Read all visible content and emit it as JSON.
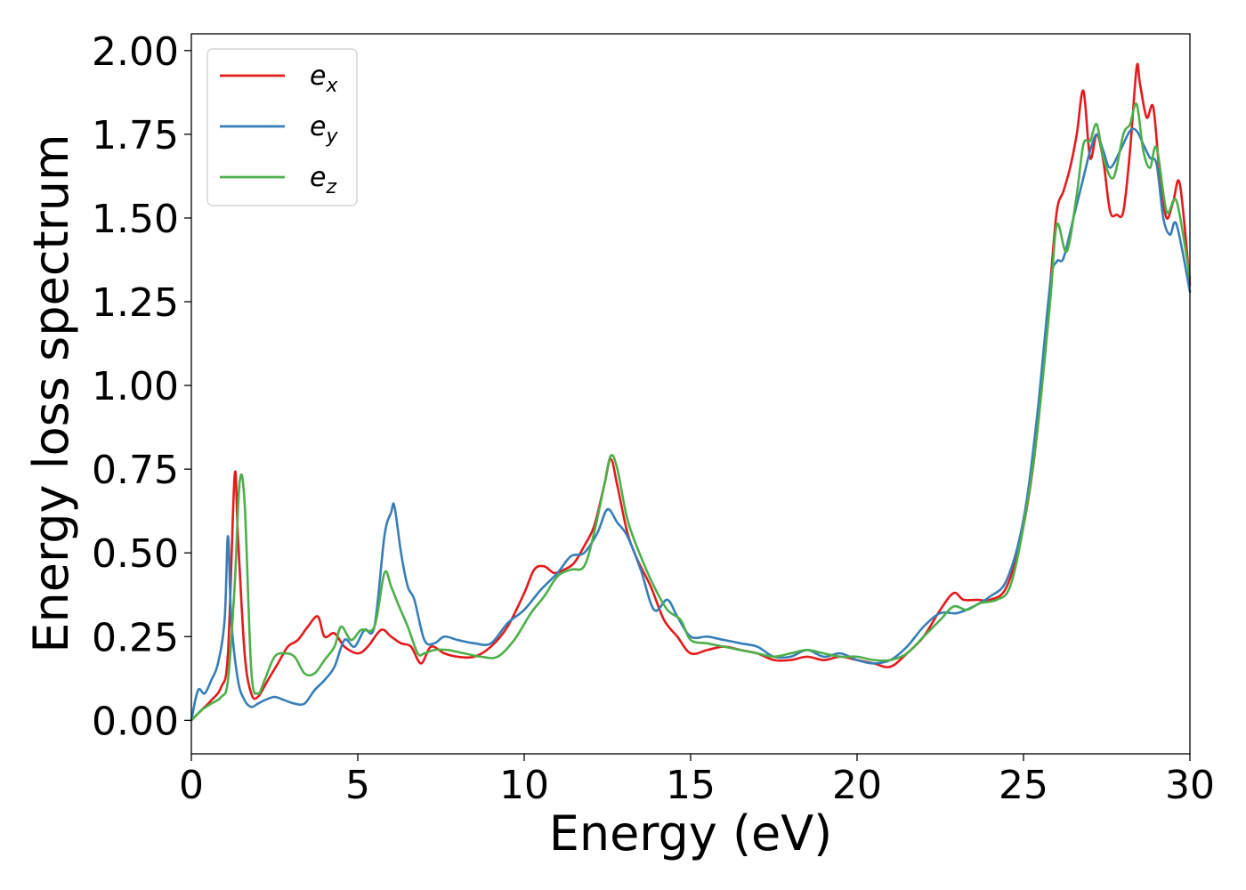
{
  "chart_data": {
    "type": "line",
    "xlabel": "Energy (eV)",
    "ylabel": "Energy loss spectrum",
    "xlim": [
      0,
      30
    ],
    "ylim": [
      -0.1,
      2.05
    ],
    "xticks": [
      0,
      5,
      10,
      15,
      20,
      25,
      30
    ],
    "xtick_labels": [
      "0",
      "5",
      "10",
      "15",
      "20",
      "25",
      "30"
    ],
    "yticks": [
      0.0,
      0.25,
      0.5,
      0.75,
      1.0,
      1.25,
      1.5,
      1.75,
      2.0
    ],
    "ytick_labels": [
      "0.00",
      "0.25",
      "0.50",
      "0.75",
      "1.00",
      "1.25",
      "1.50",
      "1.75",
      "2.00"
    ],
    "grid": false,
    "legend_position": "upper-left",
    "series": [
      {
        "name": "e_x",
        "legend_main": "e",
        "legend_sub": "x",
        "color": "#e41a1c",
        "x": [
          0,
          0.3,
          0.6,
          0.9,
          1.1,
          1.3,
          1.4,
          1.6,
          1.8,
          2.0,
          2.3,
          2.6,
          2.9,
          3.2,
          3.5,
          3.8,
          4.0,
          4.3,
          4.6,
          5.0,
          5.3,
          5.7,
          6.0,
          6.3,
          6.6,
          6.9,
          7.2,
          7.6,
          8.0,
          8.5,
          9.0,
          9.5,
          10.0,
          10.3,
          10.6,
          10.9,
          11.2,
          11.5,
          11.8,
          12.1,
          12.4,
          12.6,
          12.8,
          13.1,
          13.4,
          13.8,
          14.2,
          14.6,
          15.0,
          15.5,
          16.0,
          16.5,
          17.0,
          17.5,
          18.0,
          18.5,
          19.0,
          19.5,
          20.0,
          20.5,
          21.0,
          21.5,
          22.0,
          22.5,
          22.9,
          23.2,
          23.6,
          24.0,
          24.5,
          25.0,
          25.4,
          25.8,
          26.0,
          26.2,
          26.4,
          26.6,
          26.8,
          27.0,
          27.2,
          27.4,
          27.6,
          27.8,
          28.0,
          28.2,
          28.4,
          28.5,
          28.7,
          28.9,
          29.1,
          29.3,
          29.5,
          29.7,
          30.0
        ],
        "values": [
          0.0,
          0.03,
          0.06,
          0.1,
          0.2,
          0.73,
          0.55,
          0.2,
          0.08,
          0.07,
          0.12,
          0.17,
          0.22,
          0.24,
          0.28,
          0.31,
          0.25,
          0.26,
          0.22,
          0.2,
          0.22,
          0.27,
          0.25,
          0.23,
          0.22,
          0.17,
          0.22,
          0.2,
          0.19,
          0.19,
          0.22,
          0.28,
          0.38,
          0.45,
          0.46,
          0.44,
          0.45,
          0.47,
          0.52,
          0.58,
          0.7,
          0.78,
          0.7,
          0.56,
          0.48,
          0.4,
          0.3,
          0.25,
          0.2,
          0.21,
          0.22,
          0.21,
          0.2,
          0.18,
          0.18,
          0.19,
          0.18,
          0.19,
          0.18,
          0.17,
          0.16,
          0.2,
          0.25,
          0.33,
          0.38,
          0.36,
          0.36,
          0.36,
          0.4,
          0.58,
          0.85,
          1.3,
          1.52,
          1.58,
          1.65,
          1.75,
          1.88,
          1.68,
          1.75,
          1.67,
          1.52,
          1.51,
          1.52,
          1.7,
          1.95,
          1.9,
          1.8,
          1.83,
          1.62,
          1.5,
          1.55,
          1.6,
          1.3
        ]
      },
      {
        "name": "e_y",
        "legend_main": "e",
        "legend_sub": "y",
        "color": "#377eb8",
        "x": [
          0,
          0.2,
          0.4,
          0.6,
          0.8,
          1.0,
          1.1,
          1.2,
          1.4,
          1.6,
          1.8,
          2.0,
          2.2,
          2.5,
          2.8,
          3.1,
          3.4,
          3.7,
          4.0,
          4.3,
          4.6,
          4.9,
          5.2,
          5.5,
          5.8,
          6.0,
          6.1,
          6.3,
          6.5,
          6.7,
          7.0,
          7.3,
          7.6,
          8.0,
          8.5,
          9.0,
          9.5,
          10.0,
          10.5,
          11.0,
          11.4,
          11.8,
          12.2,
          12.5,
          12.8,
          13.1,
          13.5,
          13.9,
          14.3,
          14.6,
          15.0,
          15.5,
          16.0,
          16.5,
          17.0,
          17.5,
          18.0,
          18.5,
          19.0,
          19.5,
          20.0,
          20.5,
          21.0,
          21.5,
          22.0,
          22.5,
          23.0,
          23.5,
          24.0,
          24.5,
          25.0,
          25.4,
          25.8,
          26.0,
          26.2,
          26.5,
          26.8,
          27.0,
          27.2,
          27.4,
          27.6,
          27.9,
          28.2,
          28.4,
          28.6,
          28.8,
          29.0,
          29.2,
          29.4,
          29.6,
          30.0
        ],
        "values": [
          0.0,
          0.09,
          0.08,
          0.12,
          0.17,
          0.3,
          0.55,
          0.3,
          0.12,
          0.06,
          0.04,
          0.05,
          0.06,
          0.07,
          0.06,
          0.05,
          0.05,
          0.09,
          0.12,
          0.16,
          0.24,
          0.22,
          0.27,
          0.28,
          0.55,
          0.62,
          0.64,
          0.5,
          0.4,
          0.36,
          0.24,
          0.23,
          0.25,
          0.24,
          0.23,
          0.23,
          0.29,
          0.33,
          0.39,
          0.44,
          0.49,
          0.5,
          0.56,
          0.63,
          0.59,
          0.55,
          0.45,
          0.33,
          0.36,
          0.31,
          0.25,
          0.25,
          0.24,
          0.23,
          0.22,
          0.19,
          0.19,
          0.21,
          0.19,
          0.2,
          0.18,
          0.17,
          0.18,
          0.22,
          0.28,
          0.32,
          0.32,
          0.34,
          0.37,
          0.42,
          0.6,
          0.9,
          1.3,
          1.37,
          1.38,
          1.5,
          1.62,
          1.7,
          1.75,
          1.7,
          1.65,
          1.7,
          1.76,
          1.76,
          1.72,
          1.68,
          1.66,
          1.5,
          1.45,
          1.48,
          1.28
        ]
      },
      {
        "name": "e_z",
        "legend_main": "e",
        "legend_sub": "z",
        "color": "#4daf4a",
        "x": [
          0,
          0.3,
          0.6,
          0.9,
          1.1,
          1.3,
          1.45,
          1.6,
          1.8,
          2.0,
          2.2,
          2.5,
          2.8,
          3.1,
          3.4,
          3.7,
          4.0,
          4.3,
          4.5,
          4.8,
          5.1,
          5.5,
          5.8,
          6.0,
          6.2,
          6.5,
          6.8,
          7.0,
          7.3,
          7.7,
          8.2,
          8.7,
          9.2,
          9.7,
          10.2,
          10.6,
          11.0,
          11.4,
          11.8,
          12.1,
          12.4,
          12.6,
          12.8,
          13.1,
          13.5,
          13.9,
          14.3,
          14.7,
          15.0,
          15.5,
          16.0,
          16.5,
          17.0,
          17.5,
          18.0,
          18.5,
          19.0,
          19.5,
          20.0,
          20.5,
          21.0,
          21.5,
          22.0,
          22.5,
          22.9,
          23.3,
          23.7,
          24.2,
          24.6,
          25.0,
          25.4,
          25.8,
          26.0,
          26.3,
          26.6,
          26.8,
          27.0,
          27.2,
          27.4,
          27.7,
          28.0,
          28.2,
          28.4,
          28.6,
          28.8,
          29.0,
          29.3,
          29.6,
          30.0
        ],
        "values": [
          0.0,
          0.03,
          0.05,
          0.07,
          0.12,
          0.4,
          0.71,
          0.65,
          0.15,
          0.08,
          0.12,
          0.19,
          0.2,
          0.19,
          0.14,
          0.14,
          0.18,
          0.22,
          0.28,
          0.24,
          0.27,
          0.28,
          0.44,
          0.4,
          0.35,
          0.28,
          0.2,
          0.2,
          0.21,
          0.21,
          0.2,
          0.19,
          0.19,
          0.24,
          0.32,
          0.37,
          0.43,
          0.45,
          0.46,
          0.56,
          0.7,
          0.79,
          0.75,
          0.6,
          0.49,
          0.4,
          0.33,
          0.3,
          0.24,
          0.23,
          0.22,
          0.21,
          0.2,
          0.19,
          0.2,
          0.21,
          0.2,
          0.19,
          0.19,
          0.18,
          0.18,
          0.2,
          0.25,
          0.3,
          0.34,
          0.33,
          0.35,
          0.36,
          0.4,
          0.58,
          0.85,
          1.25,
          1.48,
          1.4,
          1.57,
          1.72,
          1.73,
          1.78,
          1.68,
          1.62,
          1.75,
          1.78,
          1.84,
          1.7,
          1.65,
          1.71,
          1.52,
          1.55,
          1.32
        ]
      }
    ]
  }
}
